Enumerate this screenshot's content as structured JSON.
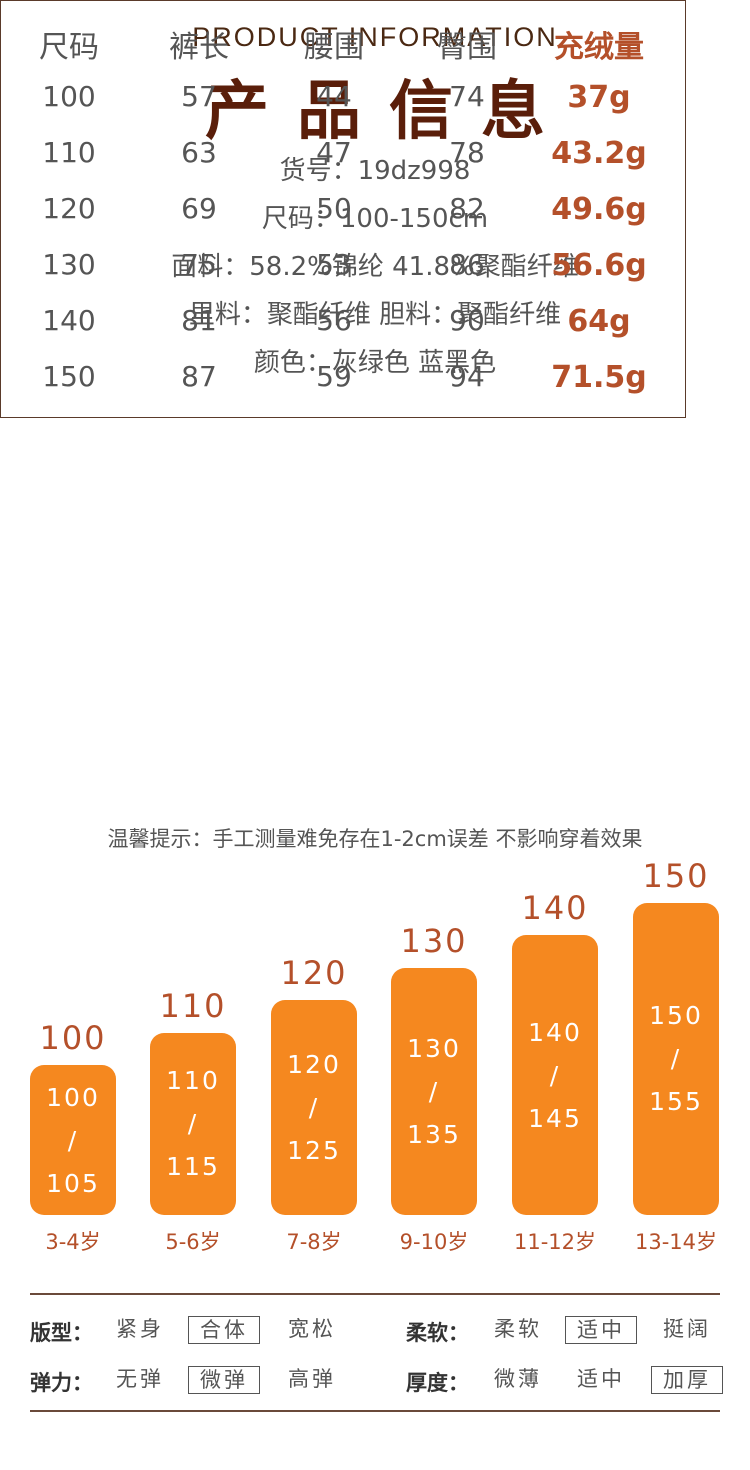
{
  "header": {
    "title_en": "PRODUCT INFORMATION",
    "title_cn": "产品信息"
  },
  "info": [
    "货号：19dz998",
    "尺码：100-150cm",
    "面料：58.2%锦纶 41.8%聚酯纤维",
    "里料：聚酯纤维  胆料：聚酯纤维",
    "颜色：灰绿色 蓝黑色"
  ],
  "table": {
    "headers": [
      "尺码",
      "裤长",
      "腰围",
      "臀围",
      "充绒量"
    ],
    "rows": [
      [
        "100",
        "57",
        "44",
        "74",
        "37g"
      ],
      [
        "110",
        "63",
        "47",
        "78",
        "43.2g"
      ],
      [
        "120",
        "69",
        "50",
        "82",
        "49.6g"
      ],
      [
        "130",
        "75",
        "53",
        "86",
        "56.6g"
      ],
      [
        "140",
        "81",
        "56",
        "90",
        "64g"
      ],
      [
        "150",
        "87",
        "59",
        "94",
        "71.5g"
      ]
    ]
  },
  "tip": "温馨提示：手工测量难免存在1-2cm误差 不影响穿着效果",
  "size_chart": [
    {
      "size": "100",
      "height_from": "100",
      "sep": "/",
      "height_to": "105",
      "age": "3-4岁"
    },
    {
      "size": "110",
      "height_from": "110",
      "sep": "/",
      "height_to": "115",
      "age": "5-6岁"
    },
    {
      "size": "120",
      "height_from": "120",
      "sep": "/",
      "height_to": "125",
      "age": "7-8岁"
    },
    {
      "size": "130",
      "height_from": "130",
      "sep": "/",
      "height_to": "135",
      "age": "9-10岁"
    },
    {
      "size": "140",
      "height_from": "140",
      "sep": "/",
      "height_to": "145",
      "age": "11-12岁"
    },
    {
      "size": "150",
      "height_from": "150",
      "sep": "/",
      "height_to": "155",
      "age": "13-14岁"
    }
  ],
  "properties": {
    "fit": {
      "label": "版型：",
      "options": [
        "紧身",
        "合体",
        "宽松"
      ],
      "selected": 1
    },
    "softness": {
      "label": "柔软：",
      "options": [
        "柔软",
        "适中",
        "挺阔"
      ],
      "selected": 1
    },
    "elasticity": {
      "label": "弹力：",
      "options": [
        "无弹",
        "微弹",
        "高弹"
      ],
      "selected": 1
    },
    "thickness": {
      "label": "厚度：",
      "options": [
        "微薄",
        "适中",
        "加厚"
      ],
      "selected": 2
    }
  },
  "colors": {
    "accent": "#f5881f",
    "text_accent": "#b4502a",
    "title": "#5a1e0a"
  }
}
